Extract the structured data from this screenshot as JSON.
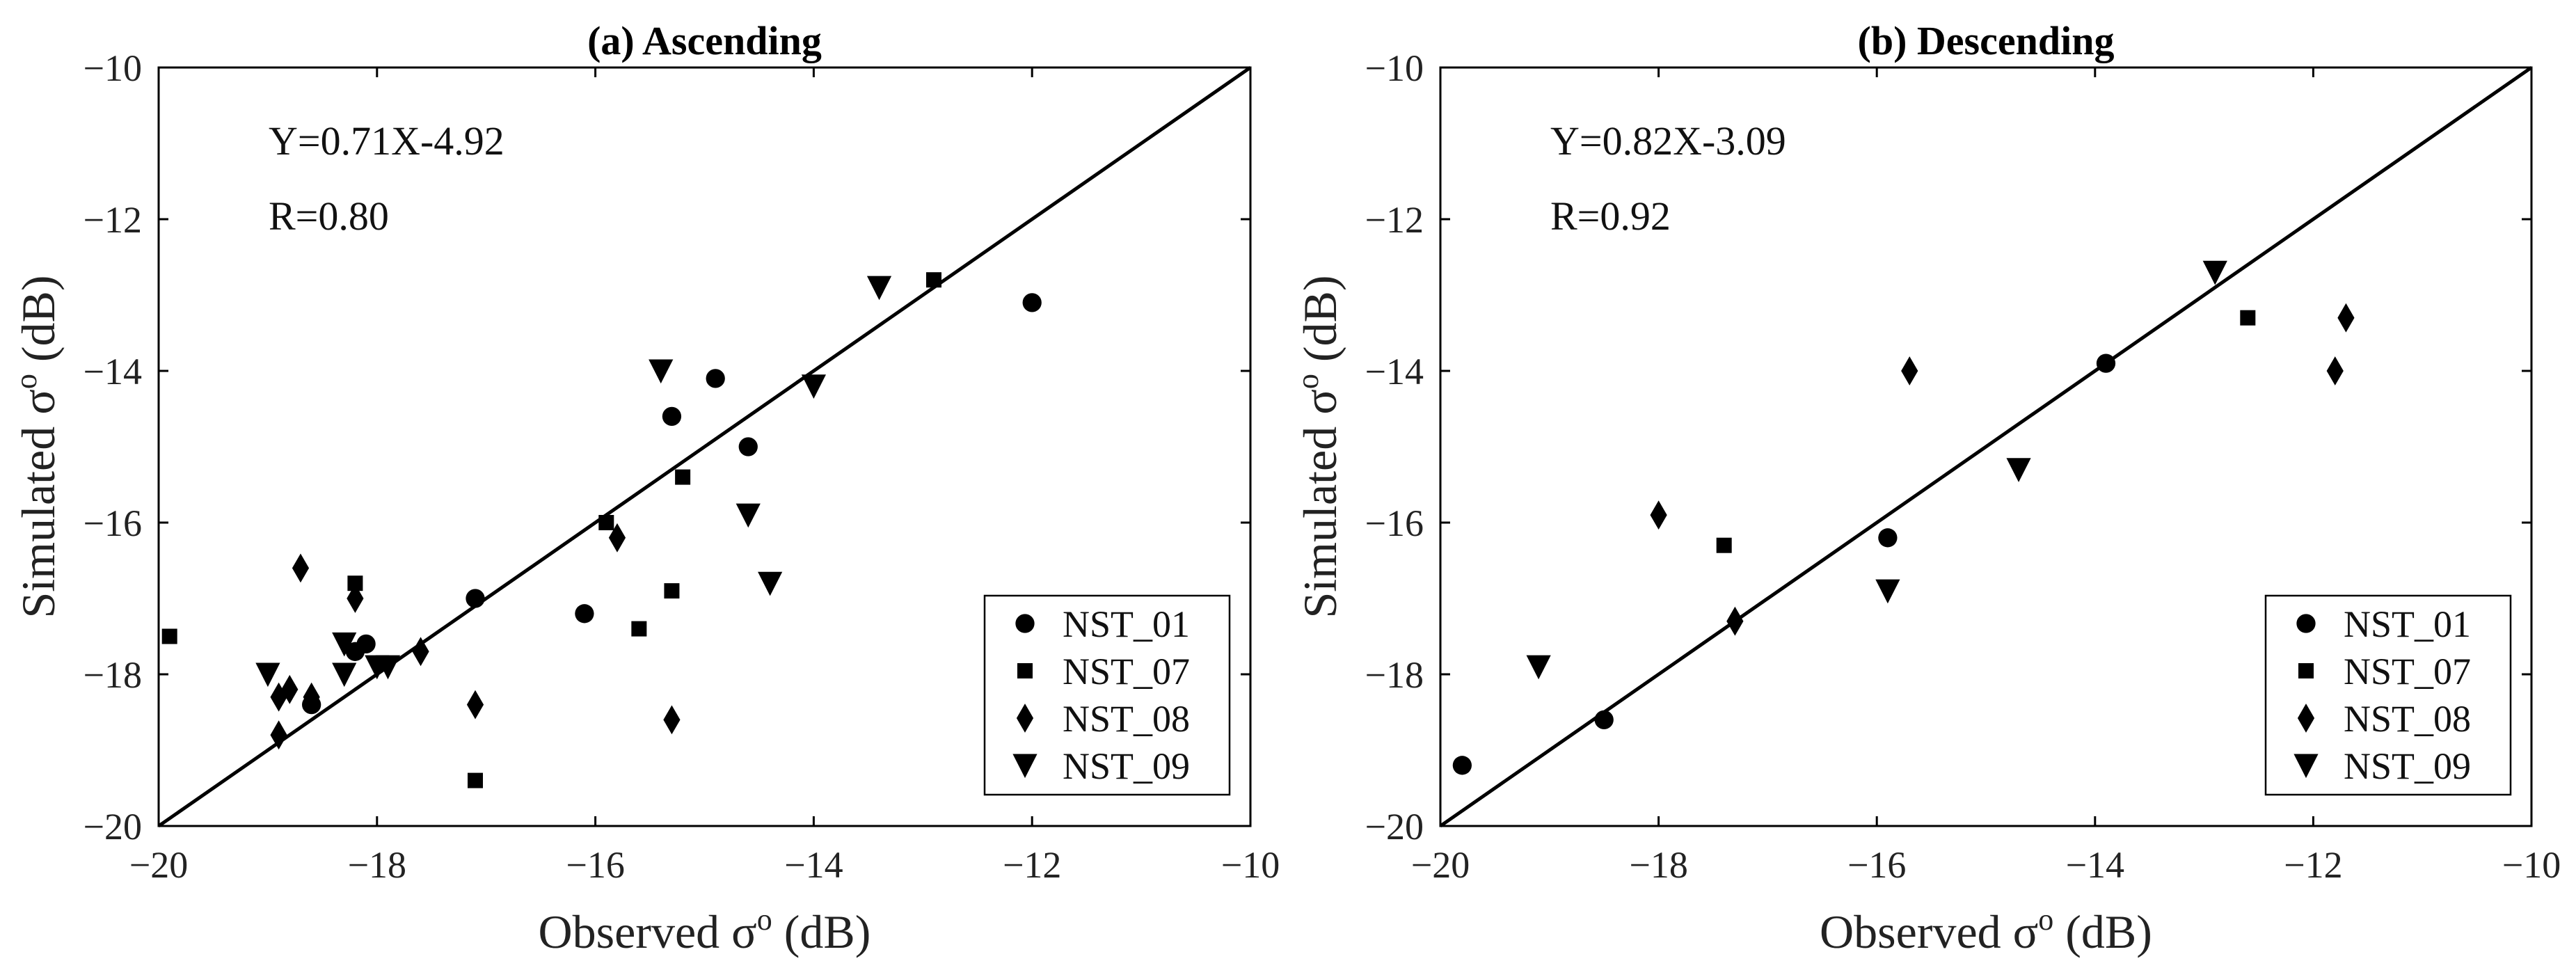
{
  "chart_data": [
    {
      "type": "scatter",
      "title": "(a) Ascending",
      "xlabel": "Observed σ",
      "ylabel": "Simulated σ",
      "label_sup": "o",
      "label_unit": " (dB)",
      "xlim": [
        -20,
        -10
      ],
      "ylim": [
        -20,
        -10
      ],
      "xticks": [
        -20,
        -18,
        -16,
        -14,
        -12,
        -10
      ],
      "yticks": [
        -20,
        -18,
        -16,
        -14,
        -12,
        -10
      ],
      "equation": "Y=0.71X-4.92",
      "r_text": "R=0.80",
      "fit_line": {
        "from": [
          -20,
          -20
        ],
        "to": [
          -10,
          -10
        ]
      },
      "legend_position": "bottom-right",
      "series": [
        {
          "name": "NST_01",
          "marker": "circle",
          "points": [
            [
              -12.0,
              -13.1
            ],
            [
              -14.9,
              -14.1
            ],
            [
              -15.3,
              -14.6
            ],
            [
              -14.6,
              -15.0
            ],
            [
              -16.1,
              -17.2
            ],
            [
              -17.1,
              -17.0
            ],
            [
              -18.1,
              -17.6
            ],
            [
              -18.2,
              -17.7
            ],
            [
              -18.6,
              -18.4
            ]
          ]
        },
        {
          "name": "NST_07",
          "marker": "square",
          "points": [
            [
              -19.9,
              -17.5
            ],
            [
              -12.9,
              -12.8
            ],
            [
              -15.2,
              -15.4
            ],
            [
              -15.9,
              -16.0
            ],
            [
              -15.3,
              -16.9
            ],
            [
              -15.6,
              -17.4
            ],
            [
              -18.2,
              -16.8
            ],
            [
              -17.1,
              -19.4
            ]
          ]
        },
        {
          "name": "NST_08",
          "marker": "diamond",
          "points": [
            [
              -18.7,
              -16.6
            ],
            [
              -18.2,
              -17.0
            ],
            [
              -17.6,
              -17.7
            ],
            [
              -15.8,
              -16.2
            ],
            [
              -17.1,
              -18.4
            ],
            [
              -15.3,
              -18.6
            ],
            [
              -18.8,
              -18.2
            ],
            [
              -18.9,
              -18.3
            ],
            [
              -18.6,
              -18.3
            ],
            [
              -18.9,
              -18.8
            ]
          ]
        },
        {
          "name": "NST_09",
          "marker": "triangle-down",
          "points": [
            [
              -13.4,
              -12.9
            ],
            [
              -15.4,
              -14.0
            ],
            [
              -14.0,
              -14.2
            ],
            [
              -14.6,
              -15.9
            ],
            [
              -14.4,
              -16.8
            ],
            [
              -19.0,
              -18.0
            ],
            [
              -18.3,
              -17.6
            ],
            [
              -18.3,
              -18.0
            ],
            [
              -17.9,
              -17.9
            ],
            [
              -18.0,
              -17.9
            ]
          ]
        }
      ]
    },
    {
      "type": "scatter",
      "title": "(b) Descending",
      "xlabel": "Observed σ",
      "ylabel": "Simulated σ",
      "label_sup": "o",
      "label_unit": " (dB)",
      "xlim": [
        -20,
        -10
      ],
      "ylim": [
        -20,
        -10
      ],
      "xticks": [
        -20,
        -18,
        -16,
        -14,
        -12,
        -10
      ],
      "yticks": [
        -20,
        -18,
        -16,
        -14,
        -12,
        -10
      ],
      "equation": "Y=0.82X-3.09",
      "r_text": "R=0.92",
      "fit_line": {
        "from": [
          -20,
          -20
        ],
        "to": [
          -10,
          -10
        ]
      },
      "legend_position": "bottom-right",
      "series": [
        {
          "name": "NST_01",
          "marker": "circle",
          "points": [
            [
              -19.8,
              -19.2
            ],
            [
              -18.5,
              -18.6
            ],
            [
              -15.9,
              -16.2
            ],
            [
              -13.9,
              -13.9
            ]
          ]
        },
        {
          "name": "NST_07",
          "marker": "square",
          "points": [
            [
              -17.4,
              -16.3
            ],
            [
              -12.6,
              -13.3
            ]
          ]
        },
        {
          "name": "NST_08",
          "marker": "diamond",
          "points": [
            [
              -15.7,
              -14.0
            ],
            [
              -18.0,
              -15.9
            ],
            [
              -17.3,
              -17.3
            ],
            [
              -11.8,
              -14.0
            ],
            [
              -11.7,
              -13.3
            ]
          ]
        },
        {
          "name": "NST_09",
          "marker": "triangle-down",
          "points": [
            [
              -19.1,
              -17.9
            ],
            [
              -15.9,
              -16.9
            ],
            [
              -14.7,
              -15.3
            ],
            [
              -12.9,
              -12.7
            ]
          ]
        }
      ]
    }
  ]
}
